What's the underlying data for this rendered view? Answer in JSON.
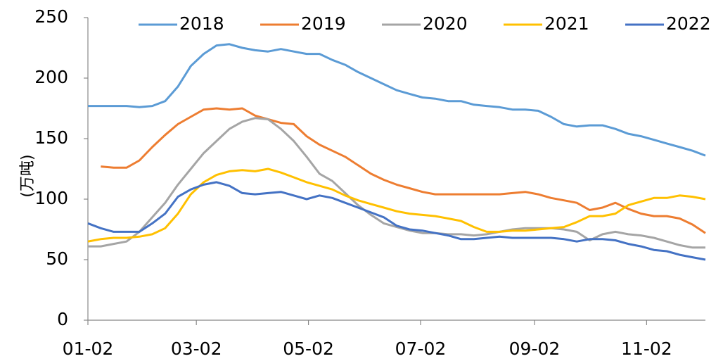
{
  "chart_data": {
    "type": "line",
    "y_label": "(万吨)",
    "x": [
      0,
      7,
      14,
      21,
      28,
      35,
      42,
      49,
      56,
      63,
      70,
      77,
      84,
      91,
      98,
      105,
      112,
      119,
      126,
      133,
      140,
      147,
      154,
      161,
      168,
      175,
      182,
      189,
      196,
      203,
      210,
      217,
      224,
      231,
      238,
      245,
      252,
      259,
      266,
      273,
      280,
      287,
      294,
      301,
      308,
      315,
      322,
      329,
      336
    ],
    "xlim": [
      0,
      336
    ],
    "xticks": [
      {
        "value": 0,
        "label": "01-02"
      },
      {
        "value": 59,
        "label": "03-02"
      },
      {
        "value": 120,
        "label": "05-02"
      },
      {
        "value": 181,
        "label": "07-02"
      },
      {
        "value": 243,
        "label": "09-02"
      },
      {
        "value": 304,
        "label": "11-02"
      }
    ],
    "ylim": [
      0,
      250
    ],
    "yticks": [
      0,
      50,
      100,
      150,
      200,
      250
    ],
    "legend": "top",
    "series": [
      {
        "name": "2018",
        "color": "#5b9bd5",
        "values": [
          177,
          177,
          177,
          177,
          176,
          177,
          181,
          193,
          210,
          220,
          227,
          228,
          225,
          223,
          222,
          224,
          222,
          220,
          220,
          215,
          211,
          205,
          200,
          195,
          190,
          187,
          184,
          183,
          181,
          181,
          178,
          177,
          176,
          174,
          174,
          173,
          168,
          162,
          160,
          161,
          161,
          158,
          154,
          152,
          149,
          146,
          143,
          140,
          136
        ]
      },
      {
        "name": "2019",
        "color": "#ed7d31",
        "values": [
          null,
          127,
          126,
          126,
          132,
          143,
          153,
          162,
          168,
          174,
          175,
          174,
          175,
          169,
          166,
          163,
          162,
          152,
          145,
          140,
          135,
          128,
          121,
          116,
          112,
          109,
          106,
          104,
          104,
          104,
          104,
          104,
          104,
          105,
          106,
          104,
          101,
          99,
          97,
          91,
          93,
          97,
          92,
          88,
          86,
          86,
          84,
          79,
          72
        ]
      },
      {
        "name": "2020",
        "color": "#a5a5a5",
        "values": [
          61,
          61,
          63,
          65,
          73,
          85,
          97,
          112,
          125,
          138,
          148,
          158,
          164,
          167,
          166,
          158,
          148,
          135,
          121,
          115,
          105,
          95,
          87,
          80,
          77,
          74,
          72,
          72,
          71,
          71,
          70,
          71,
          73,
          75,
          76,
          76,
          76,
          75,
          73,
          66,
          71,
          73,
          71,
          70,
          68,
          65,
          62,
          60,
          60
        ]
      },
      {
        "name": "2021",
        "color": "#ffc000",
        "values": [
          65,
          67,
          68,
          68,
          69,
          71,
          76,
          88,
          104,
          114,
          120,
          123,
          124,
          123,
          125,
          122,
          118,
          114,
          111,
          108,
          103,
          99,
          96,
          93,
          90,
          88,
          87,
          86,
          84,
          82,
          77,
          73,
          73,
          74,
          74,
          75,
          76,
          77,
          81,
          86,
          86,
          88,
          95,
          98,
          101,
          101,
          103,
          102,
          100
        ]
      },
      {
        "name": "2022",
        "color": "#4472c4",
        "values": [
          80,
          76,
          73,
          73,
          73,
          80,
          88,
          102,
          108,
          112,
          114,
          111,
          105,
          104,
          105,
          106,
          103,
          100,
          103,
          101,
          97,
          93,
          89,
          85,
          78,
          75,
          74,
          72,
          70,
          67,
          67,
          68,
          69,
          68,
          68,
          68,
          68,
          67,
          65,
          67,
          67,
          66,
          63,
          61,
          58,
          57,
          54,
          52,
          50
        ]
      }
    ]
  }
}
